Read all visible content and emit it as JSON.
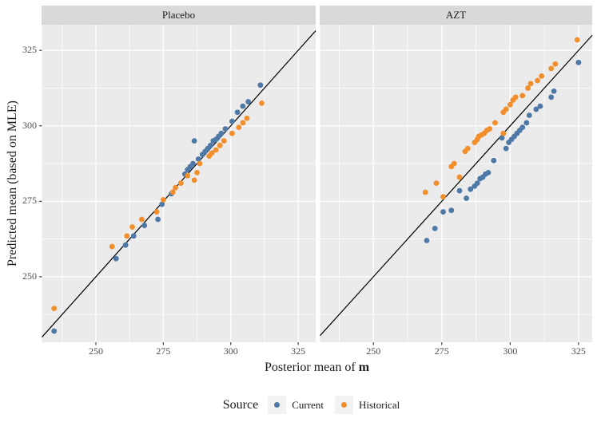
{
  "chart_data": {
    "type": "scatter",
    "xlabel_prefix": "Posterior mean of ",
    "xlabel_bold": "m",
    "ylabel": "Predicted mean (based on MLE)",
    "x_ticks": [
      250,
      275,
      300,
      325
    ],
    "y_ticks": [
      250,
      275,
      300,
      325
    ],
    "y_domain": [
      228.3,
      333.5
    ],
    "identity_line": "y = x",
    "grid": "on",
    "legend": {
      "title": "Source",
      "position": "bottom",
      "entries": [
        {
          "label": "Current",
          "color": "#4E79A7"
        },
        {
          "label": "Historical",
          "color": "#F28E2B"
        }
      ]
    },
    "colors": {
      "current": "#4E79A7",
      "historical": "#F28E2B",
      "panel_bg": "#EBEBEB",
      "strip_bg": "#D9D9D9",
      "grid": "#FFFFFF",
      "line": "#000000",
      "tick": "#333333",
      "tick_label": "#4D4D4D",
      "text": "#1A1A1A",
      "legend_key_bg": "#F2F2F2"
    },
    "facets": [
      {
        "label": "Placebo",
        "x_domain": [
          230,
          331.5
        ],
        "series": [
          {
            "name": "Current",
            "points": [
              [
                234.5,
                232
              ],
              [
                257.5,
                256
              ],
              [
                261,
                260.5
              ],
              [
                264,
                263.5
              ],
              [
                268,
                267
              ],
              [
                273,
                269
              ],
              [
                274.5,
                274
              ],
              [
                278,
                277.5
              ],
              [
                283,
                284
              ],
              [
                284,
                285.5
              ],
              [
                285,
                286.5
              ],
              [
                286,
                287.5
              ],
              [
                286.5,
                295
              ],
              [
                288,
                289
              ],
              [
                289.5,
                290.5
              ],
              [
                290.5,
                291.5
              ],
              [
                291.5,
                292.5
              ],
              [
                292.5,
                293.5
              ],
              [
                293.5,
                295
              ],
              [
                294.5,
                295.5
              ],
              [
                295.5,
                296.5
              ],
              [
                296.5,
                297.5
              ],
              [
                298,
                299
              ],
              [
                300.5,
                301.5
              ],
              [
                302.5,
                304.5
              ],
              [
                304.5,
                306.5
              ],
              [
                306.5,
                308
              ],
              [
                311,
                313.5
              ]
            ]
          },
          {
            "name": "Historical",
            "points": [
              [
                234.5,
                239.5
              ],
              [
                256,
                260
              ],
              [
                261.5,
                263.5
              ],
              [
                263.5,
                266.5
              ],
              [
                267,
                269
              ],
              [
                272.5,
                271.5
              ],
              [
                275,
                275.5
              ],
              [
                278.5,
                278
              ],
              [
                279.5,
                279.5
              ],
              [
                281.5,
                281
              ],
              [
                284,
                283.5
              ],
              [
                286.5,
                282
              ],
              [
                287.5,
                284.5
              ],
              [
                288.5,
                287.5
              ],
              [
                292,
                290
              ],
              [
                293,
                291
              ],
              [
                294.5,
                292
              ],
              [
                296,
                293.5
              ],
              [
                297.5,
                295
              ],
              [
                300.5,
                297.5
              ],
              [
                303,
                299.5
              ],
              [
                304.5,
                301
              ],
              [
                306,
                302.5
              ],
              [
                311.5,
                307.5
              ]
            ]
          }
        ]
      },
      {
        "label": "AZT",
        "x_domain": [
          230.5,
          330
        ],
        "series": [
          {
            "name": "Current",
            "points": [
              [
                269.5,
                262
              ],
              [
                272.5,
                266
              ],
              [
                275.5,
                271.5
              ],
              [
                278.5,
                272
              ],
              [
                281.5,
                278.5
              ],
              [
                284,
                276
              ],
              [
                285.5,
                279
              ],
              [
                287,
                280
              ],
              [
                288,
                281
              ],
              [
                289,
                282.5
              ],
              [
                290,
                283
              ],
              [
                291,
                284
              ],
              [
                292,
                284.5
              ],
              [
                294,
                288.5
              ],
              [
                297,
                296
              ],
              [
                298.5,
                292.5
              ],
              [
                299.5,
                294.5
              ],
              [
                300.5,
                295.5
              ],
              [
                301.5,
                296.5
              ],
              [
                302.5,
                297.5
              ],
              [
                303.5,
                298.5
              ],
              [
                304.5,
                299.5
              ],
              [
                306,
                301
              ],
              [
                307,
                303.5
              ],
              [
                309.5,
                305.5
              ],
              [
                311,
                306.5
              ],
              [
                315,
                309.5
              ],
              [
                316,
                311.5
              ],
              [
                325,
                321
              ]
            ]
          },
          {
            "name": "Historical",
            "points": [
              [
                269,
                278
              ],
              [
                273,
                281
              ],
              [
                275.5,
                276.5
              ],
              [
                278.5,
                286.5
              ],
              [
                279.5,
                287.5
              ],
              [
                281.5,
                283
              ],
              [
                283.5,
                291.5
              ],
              [
                284.5,
                292.5
              ],
              [
                287,
                294.5
              ],
              [
                288,
                295.5
              ],
              [
                288.5,
                296.5
              ],
              [
                289.5,
                297
              ],
              [
                290.5,
                297.5
              ],
              [
                291.5,
                298.5
              ],
              [
                292.5,
                299
              ],
              [
                294.5,
                301
              ],
              [
                297.5,
                297.5
              ],
              [
                297.5,
                304.5
              ],
              [
                298.5,
                305.5
              ],
              [
                300,
                307
              ],
              [
                301,
                308.5
              ],
              [
                302,
                309.5
              ],
              [
                304.5,
                310
              ],
              [
                306.5,
                312.5
              ],
              [
                307.5,
                314
              ],
              [
                310,
                315
              ],
              [
                311.5,
                316.5
              ],
              [
                315,
                319
              ],
              [
                316.5,
                320.5
              ],
              [
                324.5,
                328.5
              ]
            ]
          }
        ]
      }
    ]
  }
}
